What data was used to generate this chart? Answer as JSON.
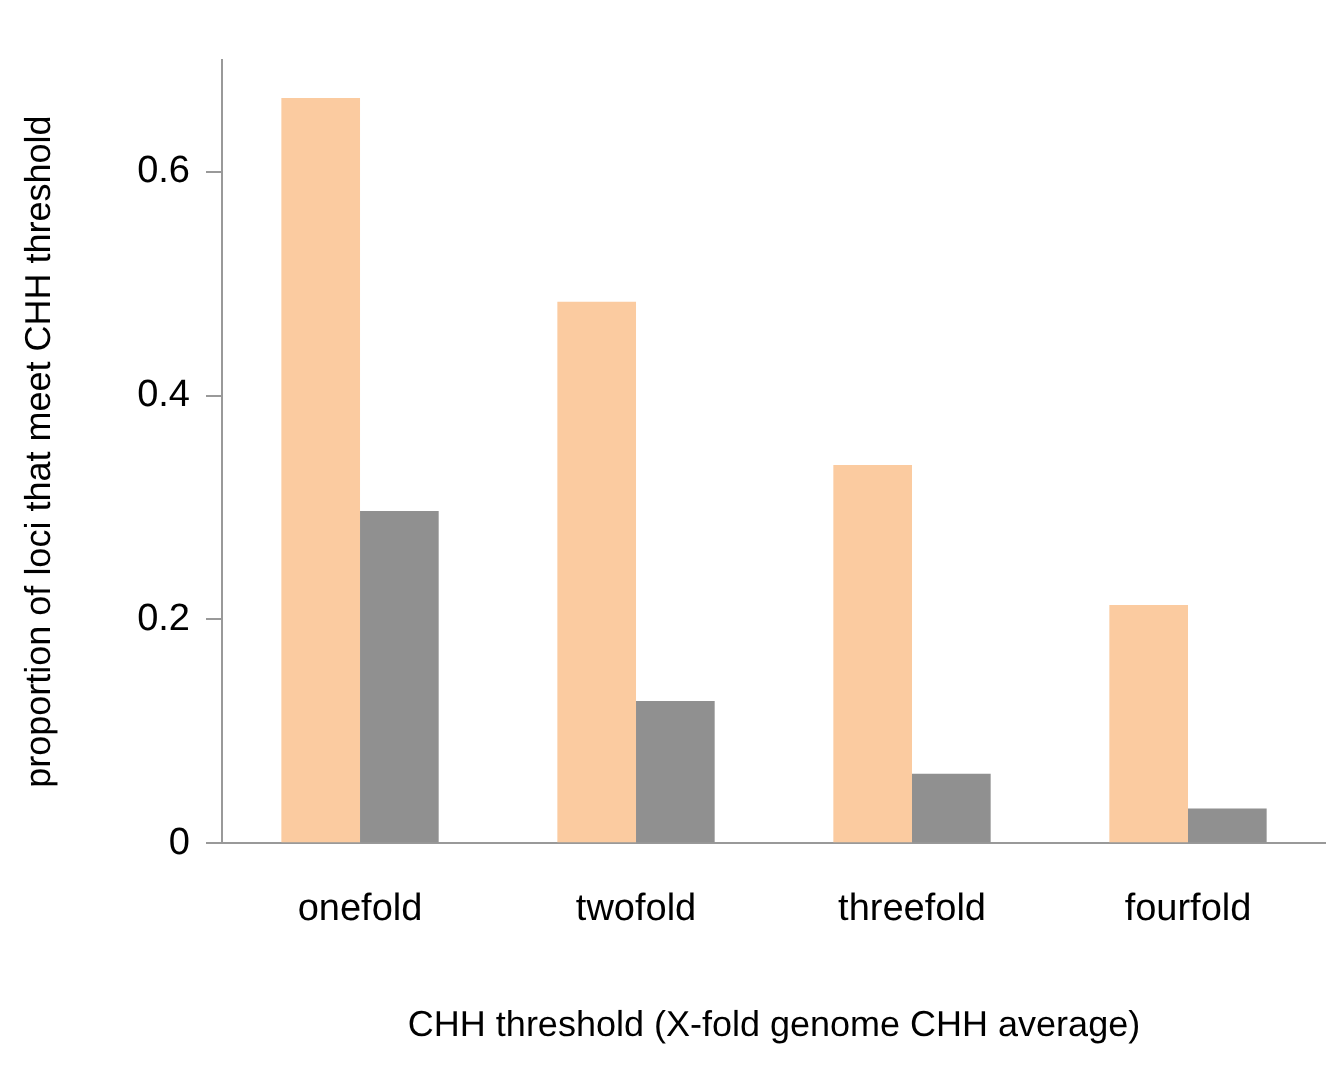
{
  "chart_data": {
    "type": "bar",
    "xlabel": "CHH threshold (X-fold genome CHH average)",
    "ylabel": "proportion of loci that meet CHH threshold",
    "categories": [
      "onefold",
      "twofold",
      "threefold",
      "fourfold"
    ],
    "series": [
      {
        "color": "#fbcba0",
        "values": [
          0.666,
          0.484,
          0.338,
          0.213
        ]
      },
      {
        "color": "#909090",
        "values": [
          0.297,
          0.127,
          0.062,
          0.031
        ]
      }
    ],
    "ylim": [
      0,
      0.7
    ],
    "yticks": [
      0,
      0.2,
      0.4,
      0.6
    ],
    "grid": false,
    "legend": false
  }
}
